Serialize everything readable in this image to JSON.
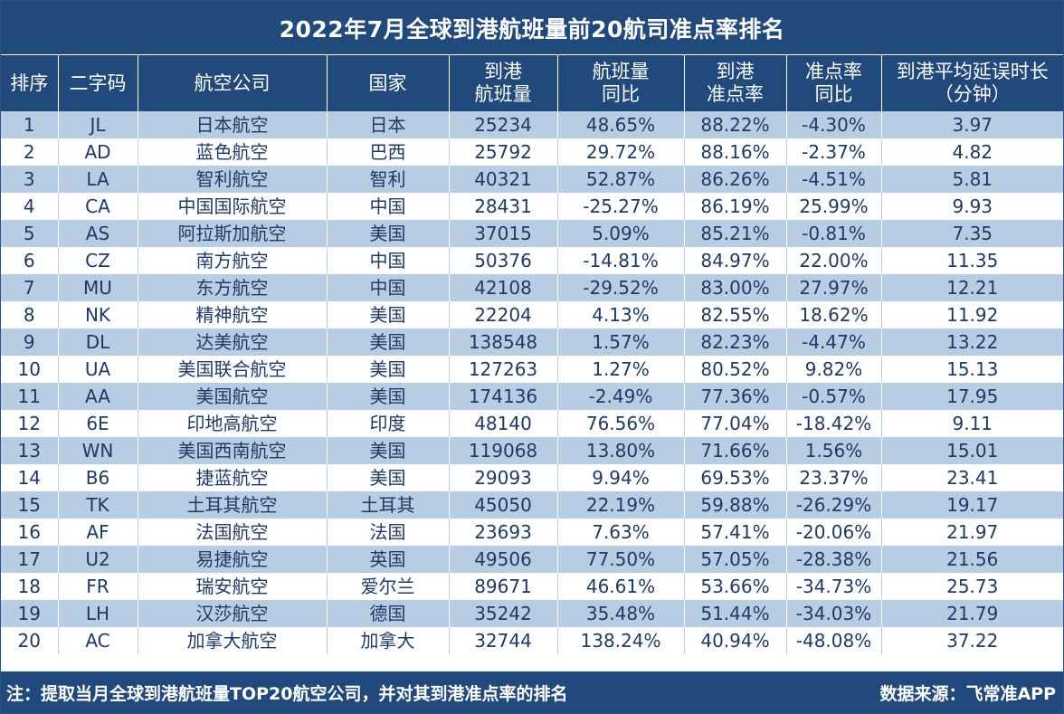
{
  "title": "2022年7月全球到港航班量前20航司准点率排名",
  "headers": [
    [
      "排序"
    ],
    [
      "二字码"
    ],
    [
      "航空公司"
    ],
    [
      "国家"
    ],
    [
      "到港",
      "航班量"
    ],
    [
      "航班量",
      "同比"
    ],
    [
      "到港",
      "准点率"
    ],
    [
      "准点率",
      "同比"
    ],
    [
      "到港平均延误时长",
      "（分钟）"
    ]
  ],
  "colors": {
    "header_bg": "#21497c",
    "band_row": "#b8cce4",
    "text": "#1f3a66"
  },
  "chart_data": {
    "type": "table",
    "title": "2022年7月全球到港航班量前20航司准点率排名",
    "columns": [
      "排序",
      "二字码",
      "航空公司",
      "国家",
      "到港航班量",
      "航班量同比",
      "到港准点率",
      "准点率同比",
      "到港平均延误时长（分钟）"
    ],
    "rows": [
      [
        "1",
        "JL",
        "日本航空",
        "日本",
        "25234",
        "48.65%",
        "88.22%",
        "-4.30%",
        "3.97"
      ],
      [
        "2",
        "AD",
        "蓝色航空",
        "巴西",
        "25792",
        "29.72%",
        "88.16%",
        "-2.37%",
        "4.82"
      ],
      [
        "3",
        "LA",
        "智利航空",
        "智利",
        "40321",
        "52.87%",
        "86.26%",
        "-4.51%",
        "5.81"
      ],
      [
        "4",
        "CA",
        "中国国际航空",
        "中国",
        "28431",
        "-25.27%",
        "86.19%",
        "25.99%",
        "9.93"
      ],
      [
        "5",
        "AS",
        "阿拉斯加航空",
        "美国",
        "37015",
        "5.09%",
        "85.21%",
        "-0.81%",
        "7.35"
      ],
      [
        "6",
        "CZ",
        "南方航空",
        "中国",
        "50376",
        "-14.81%",
        "84.97%",
        "22.00%",
        "11.35"
      ],
      [
        "7",
        "MU",
        "东方航空",
        "中国",
        "42108",
        "-29.52%",
        "83.00%",
        "27.97%",
        "12.21"
      ],
      [
        "8",
        "NK",
        "精神航空",
        "美国",
        "22204",
        "4.13%",
        "82.55%",
        "18.62%",
        "11.92"
      ],
      [
        "9",
        "DL",
        "达美航空",
        "美国",
        "138548",
        "1.57%",
        "82.23%",
        "-4.47%",
        "13.22"
      ],
      [
        "10",
        "UA",
        "美国联合航空",
        "美国",
        "127263",
        "1.27%",
        "80.52%",
        "9.82%",
        "15.13"
      ],
      [
        "11",
        "AA",
        "美国航空",
        "美国",
        "174136",
        "-2.49%",
        "77.36%",
        "-0.57%",
        "17.95"
      ],
      [
        "12",
        "6E",
        "印地高航空",
        "印度",
        "48140",
        "76.56%",
        "77.04%",
        "-18.42%",
        "9.11"
      ],
      [
        "13",
        "WN",
        "美国西南航空",
        "美国",
        "119068",
        "13.80%",
        "71.66%",
        "1.56%",
        "15.01"
      ],
      [
        "14",
        "B6",
        "捷蓝航空",
        "美国",
        "29093",
        "9.94%",
        "69.53%",
        "23.37%",
        "23.41"
      ],
      [
        "15",
        "TK",
        "土耳其航空",
        "土耳其",
        "45050",
        "22.19%",
        "59.88%",
        "-26.29%",
        "19.17"
      ],
      [
        "16",
        "AF",
        "法国航空",
        "法国",
        "23693",
        "7.63%",
        "57.41%",
        "-20.06%",
        "21.97"
      ],
      [
        "17",
        "U2",
        "易捷航空",
        "英国",
        "49506",
        "77.50%",
        "57.05%",
        "-28.38%",
        "21.56"
      ],
      [
        "18",
        "FR",
        "瑞安航空",
        "爱尔兰",
        "89671",
        "46.61%",
        "53.66%",
        "-34.73%",
        "25.73"
      ],
      [
        "19",
        "LH",
        "汉莎航空",
        "德国",
        "35242",
        "35.48%",
        "51.44%",
        "-34.03%",
        "21.79"
      ],
      [
        "20",
        "AC",
        "加拿大航空",
        "加拿大",
        "32744",
        "138.24%",
        "40.94%",
        "-48.08%",
        "37.22"
      ]
    ]
  },
  "footer": {
    "note": "注：提取当月全球到港航班量TOP20航空公司，并对其到港准点率的排名",
    "source": "数据来源：飞常准APP"
  }
}
